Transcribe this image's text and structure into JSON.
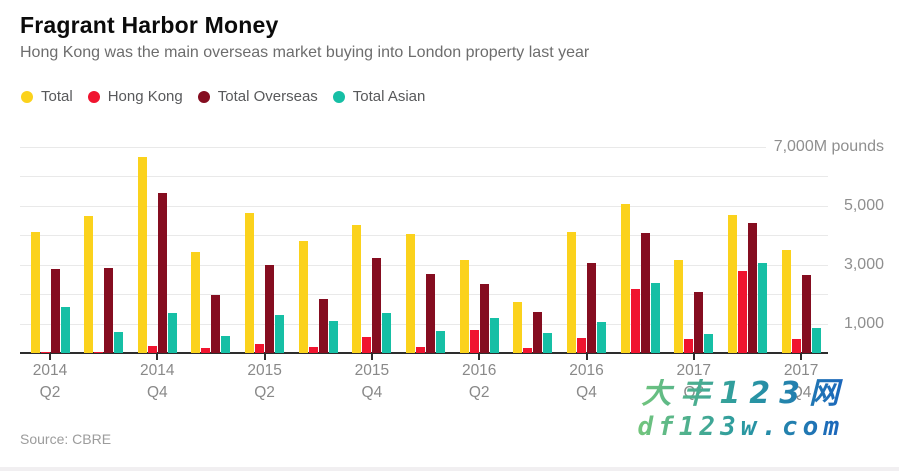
{
  "header": {
    "title": "Fragrant Harbor Money",
    "subtitle": "Hong Kong was the main overseas market buying into London property last year"
  },
  "chart_data": {
    "type": "bar",
    "title": "Fragrant Harbor Money",
    "subtitle": "Hong Kong was the main overseas market buying into London property last year",
    "unit": "M pounds",
    "ylim": [
      0,
      7000
    ],
    "grid": "horizontal",
    "legend_position": "top-left",
    "gridlines": [
      1000,
      2000,
      3000,
      4000,
      5000,
      6000,
      7000
    ],
    "y_axis_labels": [
      {
        "value": 7000,
        "label": "7,000M pounds"
      },
      {
        "value": 5000,
        "label": "5,000"
      },
      {
        "value": 3000,
        "label": "3,000"
      },
      {
        "value": 1000,
        "label": "1,000"
      }
    ],
    "categories": [
      "2014 Q2",
      "2014 Q3",
      "2014 Q4",
      "2015 Q1",
      "2015 Q2",
      "2015 Q3",
      "2015 Q4",
      "2016 Q1",
      "2016 Q2",
      "2016 Q3",
      "2016 Q4",
      "2017 Q1",
      "2017 Q2",
      "2017 Q3",
      "2017 Q4"
    ],
    "x_axis_shown_labels": [
      {
        "year": "2014",
        "quarter": "Q2"
      },
      {
        "year": "2014",
        "quarter": "Q4"
      },
      {
        "year": "2015",
        "quarter": "Q2"
      },
      {
        "year": "2015",
        "quarter": "Q4"
      },
      {
        "year": "2016",
        "quarter": "Q2"
      },
      {
        "year": "2016",
        "quarter": "Q4"
      },
      {
        "year": "2017",
        "quarter": "Q2"
      },
      {
        "year": "2017",
        "quarter": "Q4"
      }
    ],
    "series": [
      {
        "name": "Total",
        "color": "#fbd21c",
        "values": [
          4100,
          4650,
          6650,
          3430,
          4750,
          3800,
          4350,
          4050,
          3150,
          1740,
          4100,
          5050,
          3150,
          4700,
          3500
        ]
      },
      {
        "name": "Hong Kong",
        "color": "#f0142f",
        "values": [
          50,
          40,
          240,
          160,
          290,
          210,
          530,
          210,
          780,
          180,
          500,
          2170,
          460,
          2770,
          460
        ]
      },
      {
        "name": "Total Overseas",
        "color": "#850d20",
        "values": [
          2870,
          2900,
          5430,
          1960,
          2980,
          1820,
          3240,
          2700,
          2360,
          1380,
          3070,
          4080,
          2080,
          4410,
          2660
        ]
      },
      {
        "name": "Total Asian",
        "color": "#16bfa5",
        "values": [
          1550,
          720,
          1350,
          590,
          1290,
          1080,
          1370,
          750,
          1200,
          690,
          1060,
          2390,
          660,
          3050,
          840
        ]
      }
    ]
  },
  "source": {
    "label": "Source: CBRE"
  },
  "watermark": {
    "line1": "大丰123网",
    "line2": "df123w.com",
    "color_start": "#74c67c",
    "color_end": "#1b64bd"
  }
}
